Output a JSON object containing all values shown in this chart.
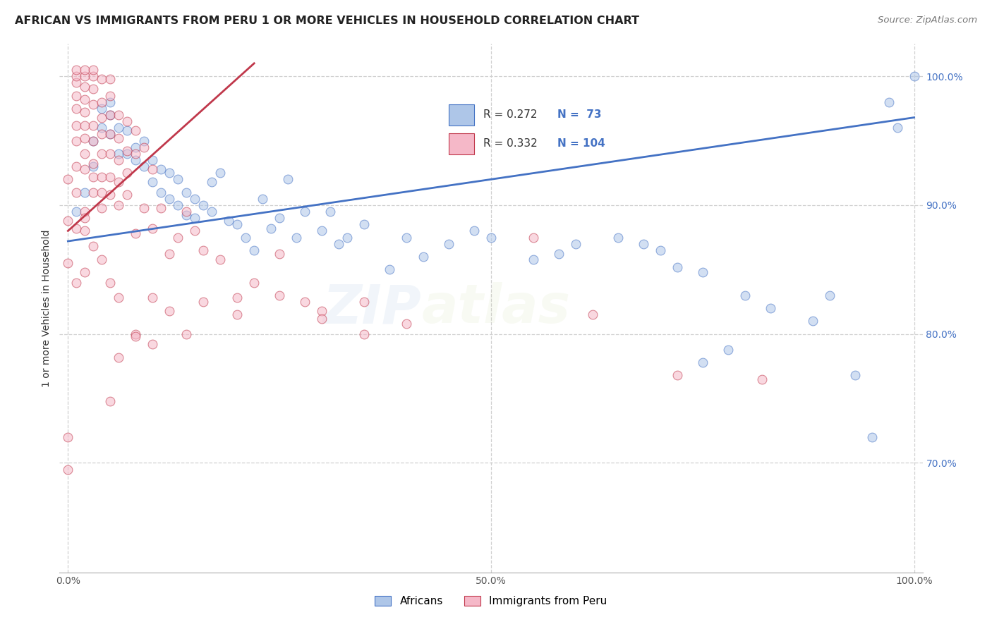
{
  "title": "AFRICAN VS IMMIGRANTS FROM PERU 1 OR MORE VEHICLES IN HOUSEHOLD CORRELATION CHART",
  "source": "Source: ZipAtlas.com",
  "ylabel": "1 or more Vehicles in Household",
  "legend_africans": "Africans",
  "legend_peru": "Immigrants from Peru",
  "blue_R": 0.272,
  "blue_N": 73,
  "pink_R": 0.332,
  "pink_N": 104,
  "blue_color": "#aec6e8",
  "pink_color": "#f5b8c8",
  "blue_line_color": "#4472c4",
  "pink_line_color": "#c0384b",
  "xlim": [
    -0.01,
    1.01
  ],
  "ylim": [
    0.615,
    1.025
  ],
  "ytick_vals": [
    0.7,
    0.8,
    0.9,
    1.0
  ],
  "ytick_labels": [
    "70.0%",
    "80.0%",
    "90.0%",
    "100.0%"
  ],
  "xtick_vals": [
    0.0,
    0.5,
    1.0
  ],
  "xtick_labels": [
    "0.0%",
    "50.0%",
    "100.0%"
  ],
  "watermark_zip": "ZIP",
  "watermark_atlas": "atlas",
  "blue_scatter_x": [
    0.01,
    0.02,
    0.03,
    0.03,
    0.04,
    0.04,
    0.05,
    0.05,
    0.05,
    0.06,
    0.06,
    0.07,
    0.07,
    0.08,
    0.08,
    0.09,
    0.09,
    0.1,
    0.1,
    0.11,
    0.11,
    0.12,
    0.12,
    0.13,
    0.13,
    0.14,
    0.14,
    0.15,
    0.15,
    0.16,
    0.17,
    0.17,
    0.18,
    0.19,
    0.2,
    0.21,
    0.22,
    0.23,
    0.24,
    0.25,
    0.26,
    0.27,
    0.28,
    0.3,
    0.31,
    0.32,
    0.33,
    0.35,
    0.38,
    0.4,
    0.42,
    0.45,
    0.48,
    0.5,
    0.55,
    0.58,
    0.6,
    0.65,
    0.68,
    0.7,
    0.72,
    0.75,
    0.8,
    0.83,
    0.88,
    0.9,
    0.93,
    0.95,
    0.97,
    0.98,
    1.0,
    0.75,
    0.78
  ],
  "blue_scatter_y": [
    0.895,
    0.91,
    0.93,
    0.95,
    0.96,
    0.975,
    0.955,
    0.97,
    0.98,
    0.94,
    0.96,
    0.94,
    0.958,
    0.935,
    0.945,
    0.93,
    0.95,
    0.918,
    0.935,
    0.91,
    0.928,
    0.905,
    0.925,
    0.9,
    0.92,
    0.892,
    0.91,
    0.89,
    0.905,
    0.9,
    0.895,
    0.918,
    0.925,
    0.888,
    0.885,
    0.875,
    0.865,
    0.905,
    0.882,
    0.89,
    0.92,
    0.875,
    0.895,
    0.88,
    0.895,
    0.87,
    0.875,
    0.885,
    0.85,
    0.875,
    0.86,
    0.87,
    0.88,
    0.875,
    0.858,
    0.862,
    0.87,
    0.875,
    0.87,
    0.865,
    0.852,
    0.848,
    0.83,
    0.82,
    0.81,
    0.83,
    0.768,
    0.72,
    0.98,
    0.96,
    1.0,
    0.778,
    0.788
  ],
  "pink_scatter_x": [
    0.0,
    0.0,
    0.0,
    0.0,
    0.01,
    0.01,
    0.01,
    0.01,
    0.01,
    0.01,
    0.01,
    0.01,
    0.01,
    0.02,
    0.02,
    0.02,
    0.02,
    0.02,
    0.02,
    0.02,
    0.02,
    0.02,
    0.02,
    0.02,
    0.03,
    0.03,
    0.03,
    0.03,
    0.03,
    0.03,
    0.03,
    0.03,
    0.03,
    0.04,
    0.04,
    0.04,
    0.04,
    0.04,
    0.04,
    0.04,
    0.04,
    0.05,
    0.05,
    0.05,
    0.05,
    0.05,
    0.05,
    0.05,
    0.06,
    0.06,
    0.06,
    0.06,
    0.06,
    0.07,
    0.07,
    0.07,
    0.07,
    0.08,
    0.08,
    0.08,
    0.09,
    0.09,
    0.1,
    0.1,
    0.11,
    0.12,
    0.13,
    0.14,
    0.15,
    0.16,
    0.18,
    0.2,
    0.22,
    0.25,
    0.28,
    0.3,
    0.35,
    0.4,
    0.55,
    0.62,
    0.72,
    0.82,
    0.0,
    0.01,
    0.01,
    0.02,
    0.02,
    0.03,
    0.04,
    0.05,
    0.06,
    0.08,
    0.1,
    0.12,
    0.14,
    0.16,
    0.2,
    0.25,
    0.3,
    0.35,
    0.05,
    0.06,
    0.08,
    0.1
  ],
  "pink_scatter_y": [
    0.695,
    0.72,
    0.888,
    0.92,
    0.91,
    0.93,
    0.95,
    0.962,
    0.975,
    0.985,
    0.995,
    1.0,
    1.005,
    0.94,
    0.952,
    0.962,
    0.972,
    0.982,
    0.992,
    1.0,
    1.005,
    0.88,
    0.895,
    0.928,
    0.91,
    0.922,
    0.932,
    0.95,
    0.962,
    0.978,
    0.99,
    1.0,
    1.005,
    0.898,
    0.91,
    0.922,
    0.94,
    0.955,
    0.968,
    0.98,
    0.998,
    0.908,
    0.922,
    0.94,
    0.955,
    0.97,
    0.985,
    0.998,
    0.9,
    0.918,
    0.935,
    0.952,
    0.97,
    0.908,
    0.925,
    0.942,
    0.965,
    0.878,
    0.94,
    0.958,
    0.898,
    0.945,
    0.882,
    0.928,
    0.898,
    0.862,
    0.875,
    0.895,
    0.88,
    0.865,
    0.858,
    0.828,
    0.84,
    0.862,
    0.825,
    0.818,
    0.825,
    0.808,
    0.875,
    0.815,
    0.768,
    0.765,
    0.855,
    0.84,
    0.882,
    0.848,
    0.89,
    0.868,
    0.858,
    0.84,
    0.828,
    0.8,
    0.792,
    0.818,
    0.8,
    0.825,
    0.815,
    0.83,
    0.812,
    0.8,
    0.748,
    0.782,
    0.798,
    0.828
  ],
  "blue_trend_x": [
    0.0,
    1.0
  ],
  "blue_trend_y": [
    0.872,
    0.968
  ],
  "pink_trend_x": [
    0.0,
    0.22
  ],
  "pink_trend_y": [
    0.88,
    1.01
  ],
  "marker_size": 85,
  "alpha": 0.55,
  "title_fontsize": 11.5,
  "axis_label_fontsize": 10,
  "tick_fontsize": 10,
  "source_fontsize": 9.5,
  "watermark_fontsize_zip": 55,
  "watermark_fontsize_atlas": 55,
  "watermark_alpha": 0.12,
  "watermark_color": "#90b4d8",
  "grid_color": "#d0d0d0",
  "grid_style": "--",
  "background_color": "#ffffff"
}
